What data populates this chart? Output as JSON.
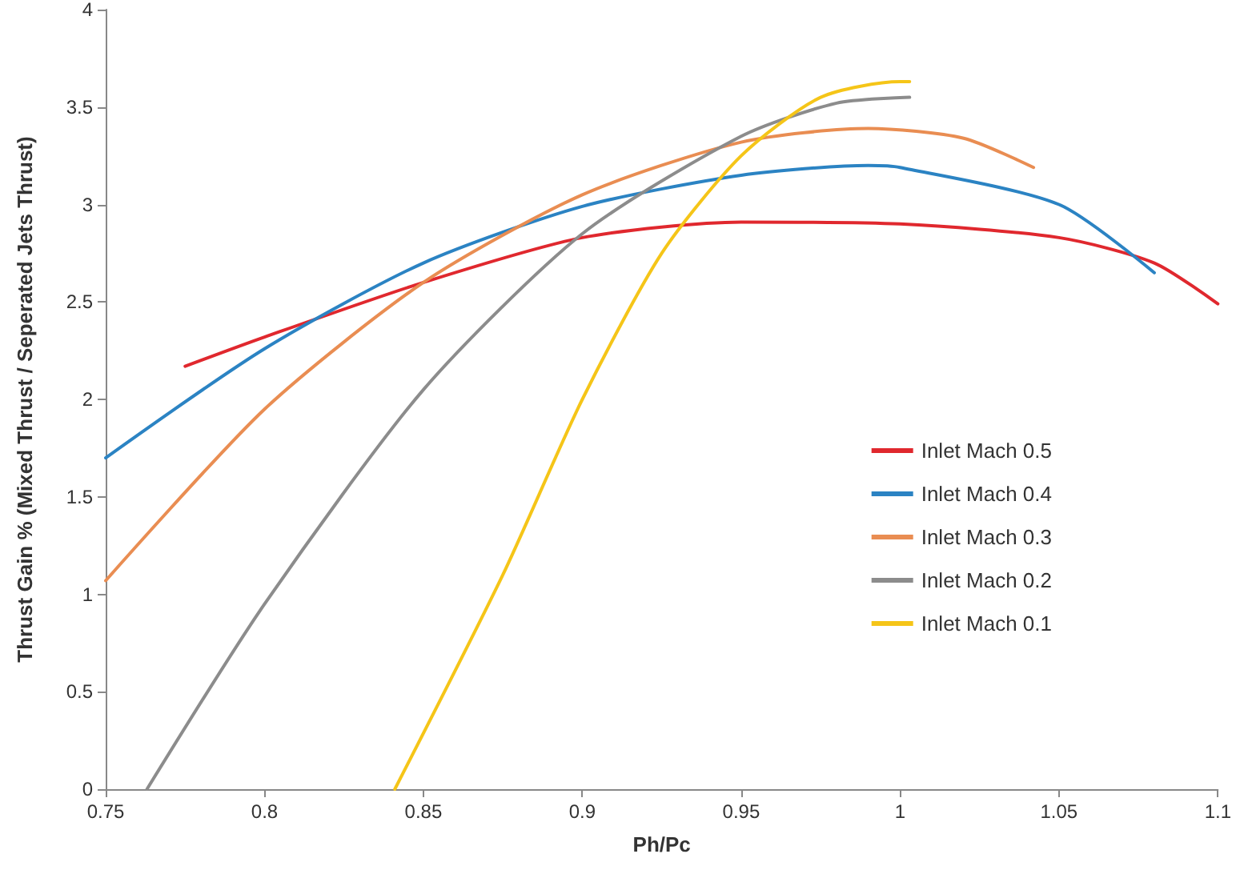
{
  "chart_data": {
    "type": "line",
    "xlabel": "Ph/Pc",
    "ylabel": "Thrust Gain % (Mixed Thrust / Seperated Jets Thrust)",
    "xlim": [
      0.75,
      1.1
    ],
    "xticks": [
      0.75,
      0.8,
      0.85,
      0.9,
      0.95,
      1,
      1.05,
      1.1
    ],
    "ylim": [
      0,
      4
    ],
    "yticks": [
      0,
      0.5,
      1,
      1.5,
      2,
      2.5,
      3,
      3.5,
      4
    ],
    "grid": false,
    "legend": "right",
    "marker": "none",
    "line_style": "solid",
    "series": [
      {
        "name": "Inlet Mach 0.5",
        "color": "#e0282e",
        "x": [
          0.775,
          0.8,
          0.85,
          0.9,
          0.95,
          1.0,
          1.05,
          1.08,
          1.1
        ],
        "values": [
          2.17,
          2.32,
          2.6,
          2.83,
          2.91,
          2.9,
          2.83,
          2.7,
          2.49
        ]
      },
      {
        "name": "Inlet Mach 0.4",
        "color": "#2b83c3",
        "x": [
          0.75,
          0.8,
          0.85,
          0.9,
          0.95,
          0.99,
          1.0,
          1.05,
          1.08
        ],
        "values": [
          1.7,
          2.26,
          2.7,
          2.99,
          3.15,
          3.2,
          3.19,
          3.0,
          2.65
        ]
      },
      {
        "name": "Inlet Mach 0.3",
        "color": "#e98d52",
        "x": [
          0.75,
          0.8,
          0.85,
          0.9,
          0.95,
          0.99,
          1.02,
          1.042
        ],
        "values": [
          1.07,
          1.95,
          2.6,
          3.05,
          3.32,
          3.39,
          3.34,
          3.19
        ]
      },
      {
        "name": "Inlet Mach 0.2",
        "color": "#8c8c8c",
        "x": [
          0.763,
          0.8,
          0.85,
          0.9,
          0.95,
          0.98,
          1.003
        ],
        "values": [
          0,
          0.95,
          2.05,
          2.85,
          3.35,
          3.52,
          3.55
        ]
      },
      {
        "name": "Inlet Mach 0.1",
        "color": "#f5c518",
        "x": [
          0.841,
          0.875,
          0.9,
          0.925,
          0.95,
          0.975,
          1.0,
          1.003
        ],
        "values": [
          0,
          1.1,
          2.0,
          2.75,
          3.25,
          3.55,
          3.63,
          3.63
        ]
      }
    ]
  }
}
